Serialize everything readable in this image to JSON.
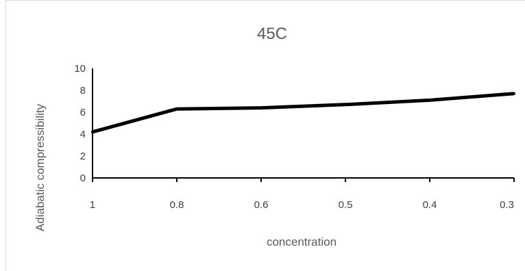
{
  "chart_data": {
    "type": "line",
    "title": "45C",
    "xlabel": "concentration",
    "ylabel": "Adiabatic compressibility",
    "categories": [
      "1",
      "0.8",
      "0.6",
      "0.5",
      "0.4",
      "0.3"
    ],
    "series": [
      {
        "values": [
          4.2,
          6.3,
          6.4,
          6.7,
          7.1,
          7.7
        ]
      }
    ],
    "ylim": [
      0,
      10
    ],
    "yticks": [
      "0",
      "2",
      "4",
      "6",
      "8",
      "10"
    ],
    "grid": false,
    "legend": "none",
    "line_color": "#000000"
  }
}
